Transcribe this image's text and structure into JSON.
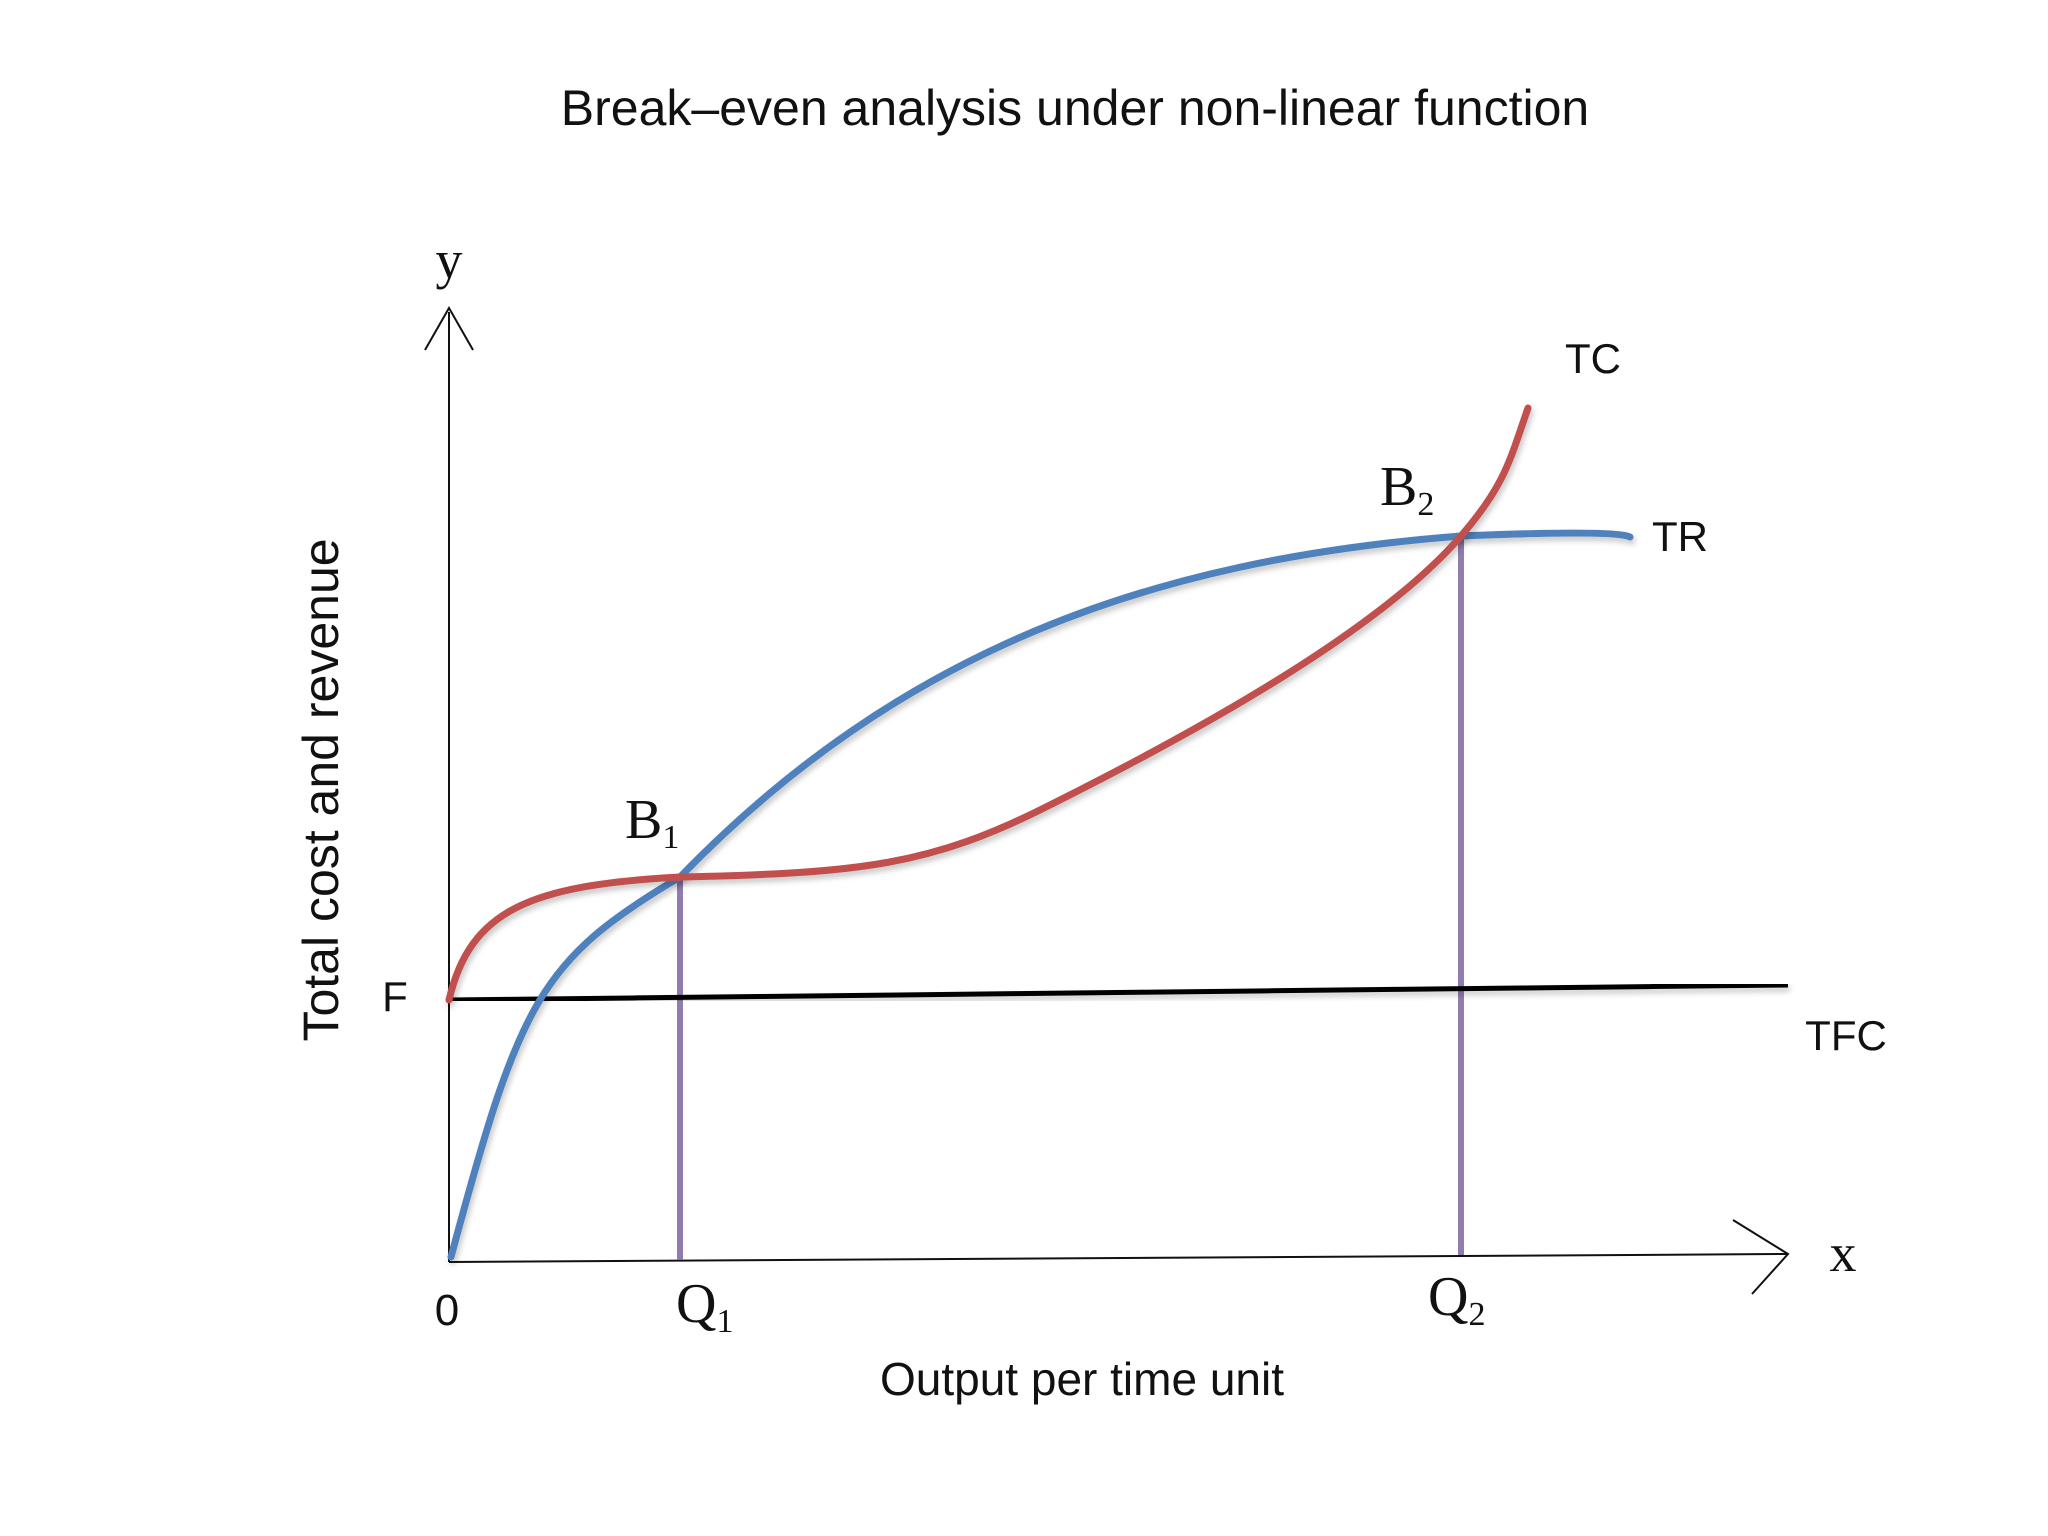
{
  "chart_data": {
    "type": "line",
    "title": "Break–even analysis under non-linear function",
    "xlabel": "Output per time unit",
    "ylabel": "Total cost and revenue",
    "x_axis_symbol": "x",
    "y_axis_symbol": "y",
    "origin_label": "0",
    "fixed_cost_label": "F",
    "grid": false,
    "colors": {
      "TR": "#4f81bd",
      "TC": "#c0504d",
      "TFC": "#000000",
      "dropline": "#8064a2"
    },
    "series": [
      {
        "name": "TR",
        "color": "#4f81bd"
      },
      {
        "name": "TC",
        "color": "#c0504d"
      },
      {
        "name": "TFC",
        "color": "#000000"
      }
    ],
    "break_even_points": [
      {
        "label": "B",
        "subscript": "1",
        "x_label": "Q",
        "x_subscript": "1"
      },
      {
        "label": "B",
        "subscript": "2",
        "x_label": "Q",
        "x_subscript": "2"
      }
    ]
  }
}
